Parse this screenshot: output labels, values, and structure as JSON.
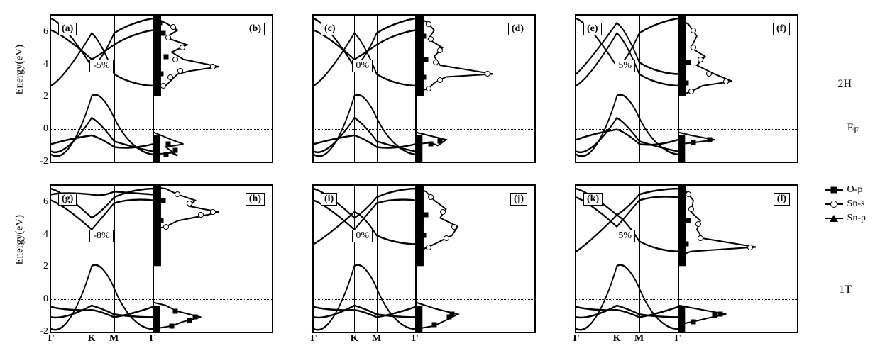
{
  "ylabel": "Energy(eV)",
  "ylim": [
    -2,
    7
  ],
  "yticks": [
    -2,
    0,
    2,
    4,
    6
  ],
  "xticks": [
    "Γ",
    "K",
    "M",
    "Γ"
  ],
  "xtick_pos": [
    0,
    0.4,
    0.62,
    1.0
  ],
  "fermi": 0,
  "row_labels": {
    "top": "2H",
    "bottom": "1T"
  },
  "ef_label": "E",
  "ef_sub": "F",
  "legend": [
    {
      "label": "O-p",
      "marker": "square"
    },
    {
      "label": "Sn-s",
      "marker": "circle"
    },
    {
      "label": "Sn-p",
      "marker": "triangle"
    }
  ],
  "panels": [
    {
      "row": "top",
      "col": 0,
      "kind": "band",
      "letter": "(a)",
      "strain": "-5%",
      "curves": [
        "M0,0.95 C0.2,1.05 0.4,0.55 0.4,0.55 C0.5,0.5 0.62,0.7 0.62,0.7 C0.8,0.95 1,0.95 1,0.95",
        "M0,0.93 C0.15,0.98 0.4,0.70 0.4,0.70 C0.5,0.74 0.62,0.86 0.62,0.86 C0.8,0.90 1,0.93 1,0.93",
        "M0,0.88 C0.2,0.84 0.4,0.82 0.4,0.82 C0.5,0.84 0.62,0.9 0.62,0.9 C0.8,0.92 1,0.88 1,0.88",
        "M0,0.48 C0.15,0.42 0.4,0.12 0.4,0.12 C0.5,0.18 0.62,0.40 0.62,0.40 C0.8,0.48 1,0.48 1,0.48",
        "M0,0.02 C0.15,0.06 0.4,0.35 0.4,0.35 C0.5,0.32 0.62,0.12 0.62,0.12 C0.8,0.04 1,0.02 1,0.02",
        "M0,0.10 C0.15,0.14 0.4,0.30 0.4,0.30 C0.5,0.26 0.62,0.20 0.62,0.20 C0.8,0.12 1,0.10 1,0.10"
      ]
    },
    {
      "row": "top",
      "col": 0,
      "kind": "dos",
      "letter": "(b)",
      "dos_curves": [
        "M0,0.95 L0.15,0.94 L0.2,0.96 L0.1,0.90 L0.25,0.88 L0.15,0.85 L0.0,0.80",
        "M0,0.50 L0.1,0.48 L0.15,0.44 L0.2,0.40 L0.3,0.38 L0.55,0.35 L0.25,0.30 L0.15,0.25 L0.28,0.20 L0.1,0.15 L0.2,0.10 L0.1,0.05 L0.0,0.02"
      ],
      "markers": [
        {
          "t": "sq",
          "x": 0.1,
          "y": 0.95
        },
        {
          "t": "sq",
          "x": 0.18,
          "y": 0.92
        },
        {
          "t": "sq",
          "x": 0.12,
          "y": 0.88
        },
        {
          "t": "ci",
          "x": 0.08,
          "y": 0.48
        },
        {
          "t": "ci",
          "x": 0.14,
          "y": 0.42
        },
        {
          "t": "ci",
          "x": 0.22,
          "y": 0.38
        },
        {
          "t": "ci",
          "x": 0.5,
          "y": 0.35
        },
        {
          "t": "ci",
          "x": 0.18,
          "y": 0.3
        },
        {
          "t": "ci",
          "x": 0.24,
          "y": 0.22
        },
        {
          "t": "ci",
          "x": 0.12,
          "y": 0.15
        },
        {
          "t": "ci",
          "x": 0.16,
          "y": 0.08
        },
        {
          "t": "sq",
          "x": 0.06,
          "y": 0.4
        },
        {
          "t": "sq",
          "x": 0.1,
          "y": 0.28
        },
        {
          "t": "sq",
          "x": 0.08,
          "y": 0.12
        },
        {
          "t": "sq",
          "x": 0.05,
          "y": 0.05
        }
      ]
    },
    {
      "row": "top",
      "col": 1,
      "kind": "band",
      "letter": "(c)",
      "strain": "0%",
      "curves": [
        "M0,0.95 C0.2,1.05 0.4,0.55 0.4,0.55 C0.5,0.5 0.62,0.7 0.62,0.7 C0.8,0.95 1,0.95 1,0.95",
        "M0,0.93 C0.15,0.98 0.4,0.70 0.4,0.70 C0.5,0.74 0.62,0.86 0.62,0.86 C0.8,0.90 1,0.93 1,0.93",
        "M0,0.88 C0.2,0.84 0.4,0.82 0.4,0.82 C0.5,0.84 0.62,0.9 0.62,0.9 C0.8,0.92 1,0.88 1,0.88",
        "M0,0.48 C0.15,0.42 0.4,0.12 0.4,0.12 C0.5,0.18 0.62,0.40 0.62,0.40 C0.8,0.48 1,0.48 1,0.48",
        "M0,0.02 C0.15,0.06 0.4,0.35 0.4,0.35 C0.5,0.32 0.62,0.12 0.62,0.12 C0.8,0.04 1,0.02 1,0.02",
        "M0,0.10 C0.15,0.14 0.4,0.30 0.4,0.30 C0.5,0.26 0.62,0.20 0.62,0.20 C0.8,0.12 1,0.10 1,0.10"
      ]
    },
    {
      "row": "top",
      "col": 1,
      "kind": "dos",
      "letter": "(d)",
      "dos_curves": [
        "M0,0.88 L0.12,0.87 L0.18,0.89 L0.25,0.85 L0.0,0.80",
        "M0,0.52 L0.1,0.50 L0.15,0.46 L0.25,0.42 L0.65,0.40 L0.2,0.34 L0.15,0.28 L0.22,0.22 L0.1,0.16 L0.15,0.10 L0.08,0.04 L0.0,0.02"
      ],
      "markers": [
        {
          "t": "sq",
          "x": 0.12,
          "y": 0.88
        },
        {
          "t": "sq",
          "x": 0.2,
          "y": 0.86
        },
        {
          "t": "ci",
          "x": 0.1,
          "y": 0.5
        },
        {
          "t": "ci",
          "x": 0.2,
          "y": 0.44
        },
        {
          "t": "ci",
          "x": 0.6,
          "y": 0.4
        },
        {
          "t": "ci",
          "x": 0.16,
          "y": 0.32
        },
        {
          "t": "ci",
          "x": 0.2,
          "y": 0.24
        },
        {
          "t": "ci",
          "x": 0.12,
          "y": 0.16
        },
        {
          "t": "ci",
          "x": 0.1,
          "y": 0.06
        },
        {
          "t": "sq",
          "x": 0.06,
          "y": 0.42
        },
        {
          "t": "sq",
          "x": 0.08,
          "y": 0.3
        },
        {
          "t": "sq",
          "x": 0.06,
          "y": 0.14
        }
      ]
    },
    {
      "row": "top",
      "col": 2,
      "kind": "band",
      "letter": "(e)",
      "strain": "5%",
      "curves": [
        "M0,0.95 C0.2,1.05 0.4,0.55 0.4,0.55 C0.5,0.5 0.62,0.7 0.62,0.7 C0.8,0.95 1,0.95 1,0.95",
        "M0,0.93 C0.15,0.98 0.4,0.70 0.4,0.70 C0.5,0.74 0.62,0.86 0.62,0.86 C0.8,0.90 1,0.93 1,0.93",
        "M0,0.85 C0.2,0.80 0.4,0.78 0.4,0.78 C0.5,0.80 0.62,0.88 0.62,0.88 C0.8,0.90 1,0.85 1,0.85",
        "M0,0.48 C0.15,0.42 0.4,0.12 0.4,0.12 C0.5,0.18 0.62,0.40 0.62,0.40 C0.8,0.48 1,0.48 1,0.48",
        "M0,0.40 C0.15,0.30 0.4,0.05 0.4,0.05 C0.5,0.10 0.62,0.32 0.62,0.32 C0.8,0.40 1,0.40 1,0.40",
        "M0,0.02 C0.15,0.06 0.4,0.35 0.4,0.35 C0.5,0.32 0.62,0.12 0.62,0.12 C0.8,0.04 1,0.02 1,0.02"
      ]
    },
    {
      "row": "top",
      "col": 2,
      "kind": "dos",
      "letter": "(f)",
      "dos_curves": [
        "M0,0.88 L0.12,0.87 L0.3,0.85 L0.1,0.82 L0.0,0.80",
        "M0,0.55 L0.1,0.52 L0.2,0.48 L0.45,0.45 L0.3,0.40 L0.15,0.34 L0.22,0.28 L0.1,0.22 L0.15,0.14 L0.08,0.06 L0.0,0.02"
      ],
      "markers": [
        {
          "t": "sq",
          "x": 0.12,
          "y": 0.87
        },
        {
          "t": "sq",
          "x": 0.26,
          "y": 0.85
        },
        {
          "t": "ci",
          "x": 0.1,
          "y": 0.52
        },
        {
          "t": "ci",
          "x": 0.4,
          "y": 0.45
        },
        {
          "t": "ci",
          "x": 0.25,
          "y": 0.4
        },
        {
          "t": "ci",
          "x": 0.18,
          "y": 0.3
        },
        {
          "t": "ci",
          "x": 0.12,
          "y": 0.22
        },
        {
          "t": "ci",
          "x": 0.12,
          "y": 0.1
        },
        {
          "t": "sq",
          "x": 0.06,
          "y": 0.46
        },
        {
          "t": "sq",
          "x": 0.08,
          "y": 0.32
        }
      ]
    },
    {
      "row": "bottom",
      "col": 0,
      "kind": "band",
      "letter": "(g)",
      "strain": "-8%",
      "curves": [
        "M0,0.98 C0.2,1.05 0.4,0.55 0.4,0.55 C0.5,0.5 0.62,0.7 0.62,0.7 C0.8,1.0 1,0.98 1,0.98",
        "M0,0.90 C0.15,0.92 0.4,0.82 0.4,0.82 C0.5,0.84 0.62,0.88 0.62,0.88 C0.8,0.90 1,0.90 1,0.90",
        "M0,0.83 C0.2,0.86 0.4,0.85 0.4,0.85 C0.5,0.86 0.62,0.90 0.62,0.90 C0.8,0.88 1,0.83 1,0.83",
        "M0,0.10 C0.15,0.14 0.4,0.30 0.4,0.30 C0.5,0.22 0.62,0.12 0.62,0.12 C0.8,0.08 1,0.10 1,0.10",
        "M0,0.02 C0.15,0.05 0.4,0.22 0.4,0.22 C0.5,0.18 0.62,0.08 0.62,0.08 C0.8,0.02 1,0.02 1,0.02",
        "M0,0.06 C0.15,0.04 0.4,0.06 0.4,0.06 C0.5,0.08 0.62,0.04 0.62,0.04 C0.8,0.05 1,0.06 1,0.06"
      ]
    },
    {
      "row": "bottom",
      "col": 0,
      "kind": "dos",
      "letter": "(h)",
      "dos_curves": [
        "M0,0.98 L0.15,0.96 L0.25,0.93 L0.40,0.90 L0.20,0.86 L0.10,0.82 L0.0,0.80",
        "M0,0.30 L0.1,0.28 L0.2,0.24 L0.45,0.20 L0.55,0.18 L0.3,0.14 L0.35,0.10 L0.2,0.06 L0.1,0.02 L0.0,0.01"
      ],
      "markers": [
        {
          "t": "sq",
          "x": 0.15,
          "y": 0.96
        },
        {
          "t": "sq",
          "x": 0.3,
          "y": 0.92
        },
        {
          "t": "sq",
          "x": 0.35,
          "y": 0.9
        },
        {
          "t": "sq",
          "x": 0.18,
          "y": 0.86
        },
        {
          "t": "ci",
          "x": 0.1,
          "y": 0.28
        },
        {
          "t": "ci",
          "x": 0.4,
          "y": 0.2
        },
        {
          "t": "ci",
          "x": 0.5,
          "y": 0.18
        },
        {
          "t": "ci",
          "x": 0.3,
          "y": 0.12
        },
        {
          "t": "ci",
          "x": 0.2,
          "y": 0.06
        },
        {
          "t": "sq",
          "x": 0.06,
          "y": 0.24
        },
        {
          "t": "sq",
          "x": 0.08,
          "y": 0.1
        }
      ]
    },
    {
      "row": "bottom",
      "col": 1,
      "kind": "band",
      "letter": "(i)",
      "strain": "0%",
      "curves": [
        "M0,0.98 C0.2,1.05 0.4,0.55 0.4,0.55 C0.5,0.5 0.62,0.7 0.62,0.7 C0.8,1.0 1,0.98 1,0.98",
        "M0,0.90 C0.15,0.92 0.4,0.82 0.4,0.82 C0.5,0.84 0.62,0.88 0.62,0.88 C0.8,0.90 1,0.90 1,0.90",
        "M0,0.83 C0.2,0.86 0.4,0.85 0.4,0.85 C0.5,0.86 0.62,0.90 0.62,0.90 C0.8,0.88 1,0.83 1,0.83",
        "M0,0.10 C0.15,0.14 0.4,0.30 0.4,0.30 C0.5,0.22 0.62,0.12 0.62,0.12 C0.8,0.08 1,0.10 1,0.10",
        "M0,0.02 C0.15,0.05 0.4,0.22 0.4,0.22 C0.5,0.18 0.62,0.08 0.62,0.08 C0.8,0.02 1,0.02 1,0.02",
        "M0,0.40 C0.15,0.34 0.4,0.18 0.4,0.18 C0.5,0.20 0.62,0.34 0.62,0.34 C0.8,0.40 1,0.40 1,0.40"
      ]
    },
    {
      "row": "bottom",
      "col": 1,
      "kind": "dos",
      "letter": "(j)",
      "dos_curves": [
        "M0,0.98 L0.15,0.96 L0.25,0.92 L0.35,0.88 L0.15,0.84 L0.0,0.80",
        "M0,0.45 L0.1,0.42 L0.2,0.38 L0.3,0.34 L0.35,0.28 L0.2,0.22 L0.25,0.16 L0.15,0.10 L0.08,0.04 L0.0,0.01"
      ],
      "markers": [
        {
          "t": "sq",
          "x": 0.15,
          "y": 0.95
        },
        {
          "t": "sq",
          "x": 0.28,
          "y": 0.9
        },
        {
          "t": "sq",
          "x": 0.3,
          "y": 0.88
        },
        {
          "t": "ci",
          "x": 0.1,
          "y": 0.42
        },
        {
          "t": "ci",
          "x": 0.25,
          "y": 0.36
        },
        {
          "t": "ci",
          "x": 0.32,
          "y": 0.28
        },
        {
          "t": "ci",
          "x": 0.22,
          "y": 0.18
        },
        {
          "t": "ci",
          "x": 0.12,
          "y": 0.08
        },
        {
          "t": "sq",
          "x": 0.06,
          "y": 0.34
        },
        {
          "t": "sq",
          "x": 0.08,
          "y": 0.2
        }
      ]
    },
    {
      "row": "bottom",
      "col": 2,
      "kind": "band",
      "letter": "(k)",
      "strain": "5%",
      "curves": [
        "M0,0.98 C0.2,1.05 0.4,0.55 0.4,0.55 C0.5,0.5 0.62,0.7 0.62,0.7 C0.8,1.0 1,0.98 1,0.98",
        "M0,0.90 C0.15,0.92 0.4,0.82 0.4,0.82 C0.5,0.84 0.62,0.88 0.62,0.88 C0.8,0.90 1,0.90 1,0.90",
        "M0,0.83 C0.2,0.86 0.4,0.85 0.4,0.85 C0.5,0.86 0.62,0.90 0.62,0.90 C0.8,0.88 1,0.83 1,0.83",
        "M0,0.45 C0.15,0.38 0.4,0.20 0.4,0.20 C0.5,0.24 0.62,0.38 0.62,0.38 C0.8,0.45 1,0.45 1,0.45",
        "M0,0.08 C0.15,0.12 0.4,0.28 0.4,0.28 C0.5,0.20 0.62,0.10 0.62,0.10 C0.8,0.06 1,0.08 1,0.08",
        "M0,0.02 C0.15,0.05 0.4,0.20 0.4,0.20 C0.5,0.16 0.62,0.06 0.62,0.06 C0.8,0.02 1,0.02 1,0.02"
      ]
    },
    {
      "row": "bottom",
      "col": 2,
      "kind": "dos",
      "letter": "(l)",
      "dos_curves": [
        "M0,0.95 L0.12,0.93 L0.28,0.90 L0.40,0.88 L0.20,0.85 L0.0,0.82",
        "M0,0.48 L0.1,0.45 L0.65,0.42 L0.2,0.36 L0.15,0.30 L0.18,0.24 L0.1,0.18 L0.12,0.10 L0.06,0.04 L0.0,0.01"
      ],
      "markers": [
        {
          "t": "sq",
          "x": 0.12,
          "y": 0.93
        },
        {
          "t": "sq",
          "x": 0.3,
          "y": 0.89
        },
        {
          "t": "sq",
          "x": 0.35,
          "y": 0.88
        },
        {
          "t": "ci",
          "x": 0.6,
          "y": 0.42
        },
        {
          "t": "ci",
          "x": 0.18,
          "y": 0.36
        },
        {
          "t": "ci",
          "x": 0.16,
          "y": 0.26
        },
        {
          "t": "ci",
          "x": 0.1,
          "y": 0.16
        },
        {
          "t": "ci",
          "x": 0.08,
          "y": 0.06
        },
        {
          "t": "sq",
          "x": 0.06,
          "y": 0.4
        },
        {
          "t": "sq",
          "x": 0.08,
          "y": 0.24
        }
      ]
    }
  ],
  "colors": {
    "line": "#000000",
    "bg": "#ffffff"
  }
}
